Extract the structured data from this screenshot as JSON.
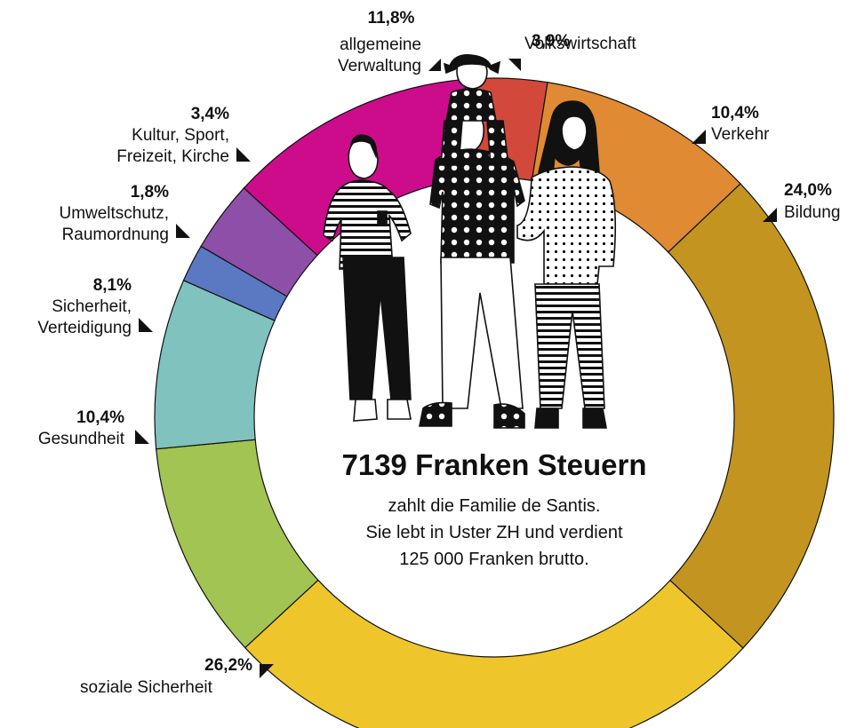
{
  "chart_data": {
    "type": "pie",
    "variant": "donut",
    "categories": [
      "Volkswirtschaft",
      "Verkehr",
      "Bildung",
      "soziale Sicherheit",
      "Gesundheit",
      "Sicherheit, Verteidigung",
      "Umweltschutz, Raumordnung",
      "Kultur, Sport, Freizeit, Kirche",
      "allgemeine Verwaltung"
    ],
    "values": [
      3.9,
      10.4,
      24.0,
      26.2,
      10.4,
      8.1,
      1.8,
      3.4,
      11.8
    ],
    "value_labels": [
      "3,9%",
      "10,4%",
      "24,0%",
      "26,2%",
      "10,4%",
      "8,1%",
      "1,8%",
      "3,4%",
      "11,8%"
    ],
    "label_lines": [
      [
        "Volkswirtschaft"
      ],
      [
        "Verkehr"
      ],
      [
        "Bildung"
      ],
      [
        "soziale Sicherheit"
      ],
      [
        "Gesundheit"
      ],
      [
        "Sicherheit,",
        "Verteidigung"
      ],
      [
        "Umweltschutz,",
        "Raumordnung"
      ],
      [
        "Kultur, Sport,",
        "Freizeit, Kirche"
      ],
      [
        "allgemeine",
        "Verwaltung"
      ]
    ],
    "colors": [
      "#d2483a",
      "#e08a34",
      "#c39520",
      "#eec62c",
      "#a2c452",
      "#80c2bd",
      "#5b78c2",
      "#8e4fa8",
      "#cc0c8a"
    ],
    "unit": "%"
  },
  "center": {
    "title": "7139 Franken Steuern",
    "lines": [
      "zahlt die Familie de Santis.",
      "Sie lebt in Uster ZH und verdient",
      "125 000 Franken brutto."
    ]
  }
}
